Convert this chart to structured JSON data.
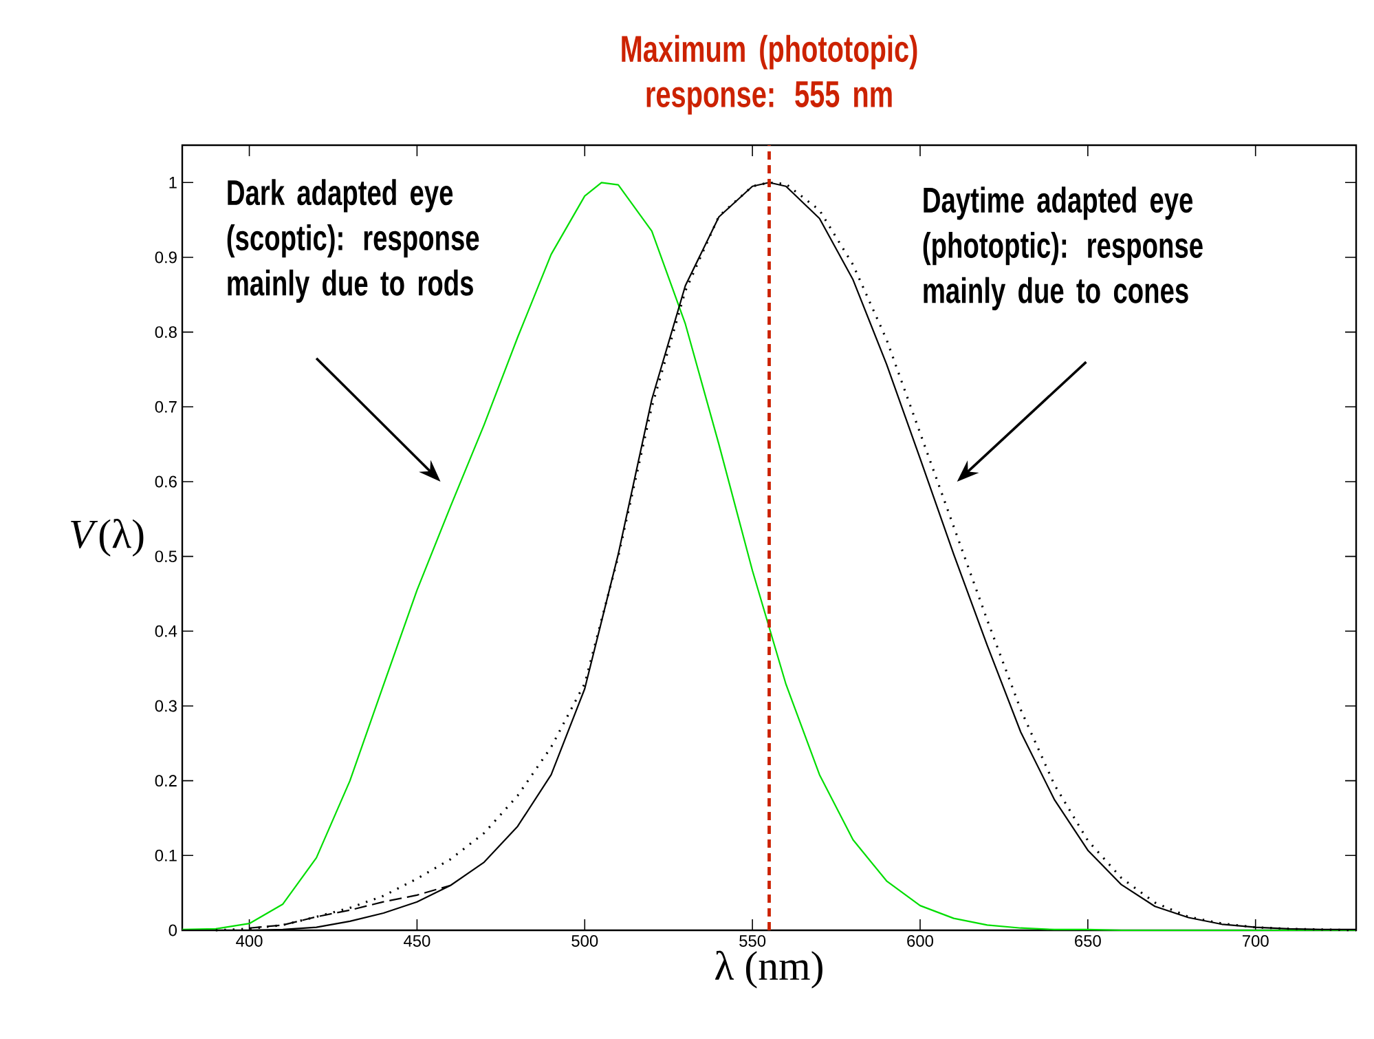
{
  "chart_data": {
    "type": "line",
    "xlabel": "λ (nm)",
    "ylabel": "*V*(λ)",
    "xlim": [
      380,
      730
    ],
    "ylim": [
      0,
      1.05
    ],
    "xticks": [
      400,
      450,
      500,
      550,
      600,
      650,
      700
    ],
    "yticks": [
      0,
      0.1,
      0.2,
      0.3,
      0.4,
      0.5,
      0.6,
      0.7,
      0.8,
      0.9,
      1
    ],
    "grid": false,
    "marker": "none",
    "series": [
      {
        "color": "#00dd00",
        "line_style": "solid",
        "x": [
          380,
          390,
          400,
          410,
          420,
          430,
          440,
          450,
          460,
          470,
          480,
          490,
          500,
          505,
          510,
          520,
          530,
          540,
          550,
          560,
          570,
          580,
          590,
          600,
          610,
          620,
          630,
          640,
          650,
          660,
          670,
          680,
          690,
          700,
          710,
          720,
          730
        ],
        "values": [
          0.001,
          0.002,
          0.009,
          0.035,
          0.097,
          0.2,
          0.328,
          0.455,
          0.567,
          0.676,
          0.793,
          0.904,
          0.982,
          1.0,
          0.997,
          0.935,
          0.811,
          0.65,
          0.481,
          0.329,
          0.208,
          0.121,
          0.066,
          0.033,
          0.016,
          0.007,
          0.003,
          0.001,
          0.001,
          0,
          0,
          0,
          0,
          0,
          0,
          0,
          0
        ]
      },
      {
        "color": "#000000",
        "line_style": "solid",
        "x": [
          380,
          390,
          400,
          410,
          420,
          430,
          440,
          450,
          460,
          470,
          480,
          490,
          500,
          510,
          520,
          530,
          540,
          550,
          555,
          560,
          570,
          580,
          590,
          600,
          610,
          620,
          630,
          640,
          650,
          660,
          670,
          680,
          690,
          700,
          710,
          720,
          730
        ],
        "values": [
          0,
          0,
          0,
          0.001,
          0.004,
          0.012,
          0.023,
          0.038,
          0.06,
          0.091,
          0.139,
          0.208,
          0.323,
          0.503,
          0.71,
          0.862,
          0.954,
          0.995,
          1.0,
          0.995,
          0.952,
          0.87,
          0.757,
          0.631,
          0.503,
          0.381,
          0.265,
          0.175,
          0.107,
          0.061,
          0.032,
          0.017,
          0.008,
          0.004,
          0.002,
          0.001,
          0.001
        ]
      },
      {
        "color": "#000000",
        "line_style": "dotted",
        "x": [
          390,
          400,
          410,
          420,
          430,
          440,
          450,
          460,
          470,
          480,
          490,
          500,
          510,
          520,
          530,
          540,
          550,
          555,
          560,
          570,
          580,
          590,
          600,
          610,
          620,
          630,
          640,
          650,
          660,
          670,
          680,
          690,
          700,
          710,
          720,
          730
        ],
        "values": [
          0,
          0.002,
          0.007,
          0.018,
          0.03,
          0.046,
          0.069,
          0.095,
          0.13,
          0.18,
          0.245,
          0.33,
          0.5,
          0.7,
          0.855,
          0.955,
          0.995,
          1.0,
          0.998,
          0.963,
          0.89,
          0.79,
          0.665,
          0.54,
          0.415,
          0.295,
          0.195,
          0.12,
          0.07,
          0.037,
          0.018,
          0.009,
          0.004,
          0.002,
          0.001,
          0
        ]
      },
      {
        "color": "#000000",
        "line_style": "dashed",
        "x": [
          400,
          410,
          420,
          430,
          440,
          450,
          460
        ],
        "values": [
          0.003,
          0.007,
          0.018,
          0.027,
          0.038,
          0.047,
          0.06
        ]
      }
    ],
    "ref_lines": [
      {
        "axis": "x",
        "value": 555,
        "label": "Maximum (phototopic) response: 555 nm",
        "color": "#cc2200",
        "line_style": "dashed"
      }
    ],
    "annotations": [
      "Dark adapted eye (scoptic): response mainly due to rods",
      "Daytime adapted eye (photoptic): response mainly due to cones"
    ]
  }
}
